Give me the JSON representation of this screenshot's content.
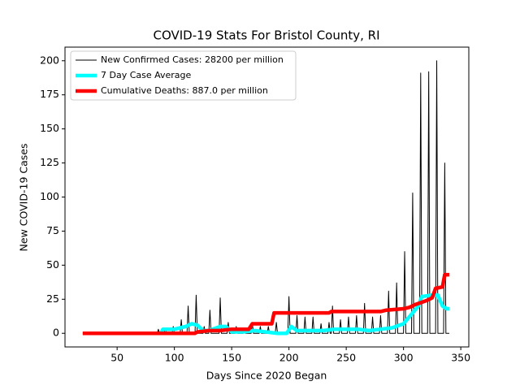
{
  "chart_data": {
    "type": "line",
    "title": "COVID-19 Stats For Bristol County, RI",
    "x_label": "Days Since 2020 Began",
    "y_label": "New COVID-19 Cases",
    "xlim": [
      4.5,
      357
    ],
    "ylim": [
      -10,
      210
    ],
    "xticks": [
      50,
      100,
      150,
      200,
      250,
      300,
      350
    ],
    "yticks": [
      0,
      25,
      50,
      75,
      100,
      125,
      150,
      175,
      200
    ],
    "legend": "upper left",
    "series": [
      {
        "name": "New Confirmed Cases: 28200 per million",
        "color": "#000000",
        "width": 1,
        "x": [
          20,
          84,
          85,
          86,
          87,
          91,
          92,
          93,
          98,
          99,
          100,
          105,
          106,
          107,
          111,
          112,
          113,
          118,
          119,
          120,
          125,
          126,
          127,
          130,
          131,
          132,
          139,
          140,
          141,
          146,
          147,
          148,
          153,
          154,
          155,
          160,
          161,
          162,
          167,
          168,
          169,
          174,
          175,
          176,
          181,
          182,
          183,
          188,
          189,
          190,
          199,
          200,
          201,
          206,
          207,
          208,
          213,
          214,
          215,
          220,
          221,
          222,
          227,
          228,
          229,
          234,
          235,
          236,
          237,
          238,
          239,
          244,
          245,
          246,
          251,
          252,
          253,
          258,
          259,
          260,
          265,
          266,
          267,
          272,
          273,
          274,
          279,
          280,
          281,
          286,
          287,
          288,
          293,
          294,
          295,
          300,
          301,
          302,
          307,
          308,
          309,
          314,
          315,
          316,
          321,
          322,
          323,
          328,
          329,
          330,
          335,
          336,
          337,
          340
        ],
        "values": [
          0,
          0,
          0,
          3,
          0,
          0,
          4,
          0,
          0,
          5,
          0,
          0,
          10,
          0,
          0,
          20,
          0,
          0,
          28,
          0,
          0,
          5,
          0,
          0,
          17,
          0,
          0,
          26,
          0,
          0,
          8,
          0,
          0,
          5,
          0,
          0,
          3,
          0,
          0,
          8,
          0,
          0,
          5,
          0,
          0,
          5,
          0,
          0,
          8,
          0,
          0,
          27,
          0,
          0,
          13,
          0,
          0,
          12,
          0,
          0,
          12,
          0,
          0,
          7,
          0,
          0,
          8,
          0,
          0,
          20,
          0,
          0,
          10,
          0,
          0,
          12,
          0,
          0,
          13,
          0,
          0,
          22,
          0,
          0,
          12,
          0,
          0,
          13,
          0,
          0,
          31,
          0,
          0,
          37,
          0,
          0,
          60,
          0,
          0,
          103,
          0,
          0,
          191,
          0,
          0,
          192,
          0,
          0,
          200,
          0,
          0,
          125,
          0,
          0
        ]
      },
      {
        "name": "7 Day Case Average",
        "color": "#00ffff",
        "width": 4.5,
        "x": [
          20,
          88,
          90,
          100,
          110,
          115,
          120,
          125,
          130,
          140,
          145,
          150,
          160,
          170,
          180,
          190,
          198,
          202,
          207,
          230,
          240,
          260,
          270,
          280,
          290,
          300,
          305,
          310,
          313,
          316,
          325,
          330,
          334,
          338,
          340
        ],
        "values": [
          0,
          0,
          3,
          3,
          5,
          7,
          6,
          2,
          2,
          5,
          5,
          1,
          1,
          2,
          1,
          0,
          0,
          5,
          2,
          2,
          3,
          3,
          2,
          3,
          4,
          7,
          12,
          17,
          20,
          27,
          28,
          28,
          20,
          18,
          18
        ]
      },
      {
        "name": "Cumulative Deaths: 887.0 per million",
        "color": "#ff0000",
        "width": 4.5,
        "x": [
          20,
          118,
          120,
          130,
          140,
          150,
          165,
          168,
          185,
          187,
          235,
          237,
          280,
          285,
          300,
          305,
          310,
          320,
          325,
          328,
          334,
          336,
          340
        ],
        "values": [
          0,
          0,
          1,
          2,
          2,
          3,
          3,
          7,
          7,
          15,
          15,
          16,
          16,
          17,
          18,
          19,
          21,
          24,
          26,
          33,
          34,
          43,
          43
        ]
      }
    ]
  }
}
